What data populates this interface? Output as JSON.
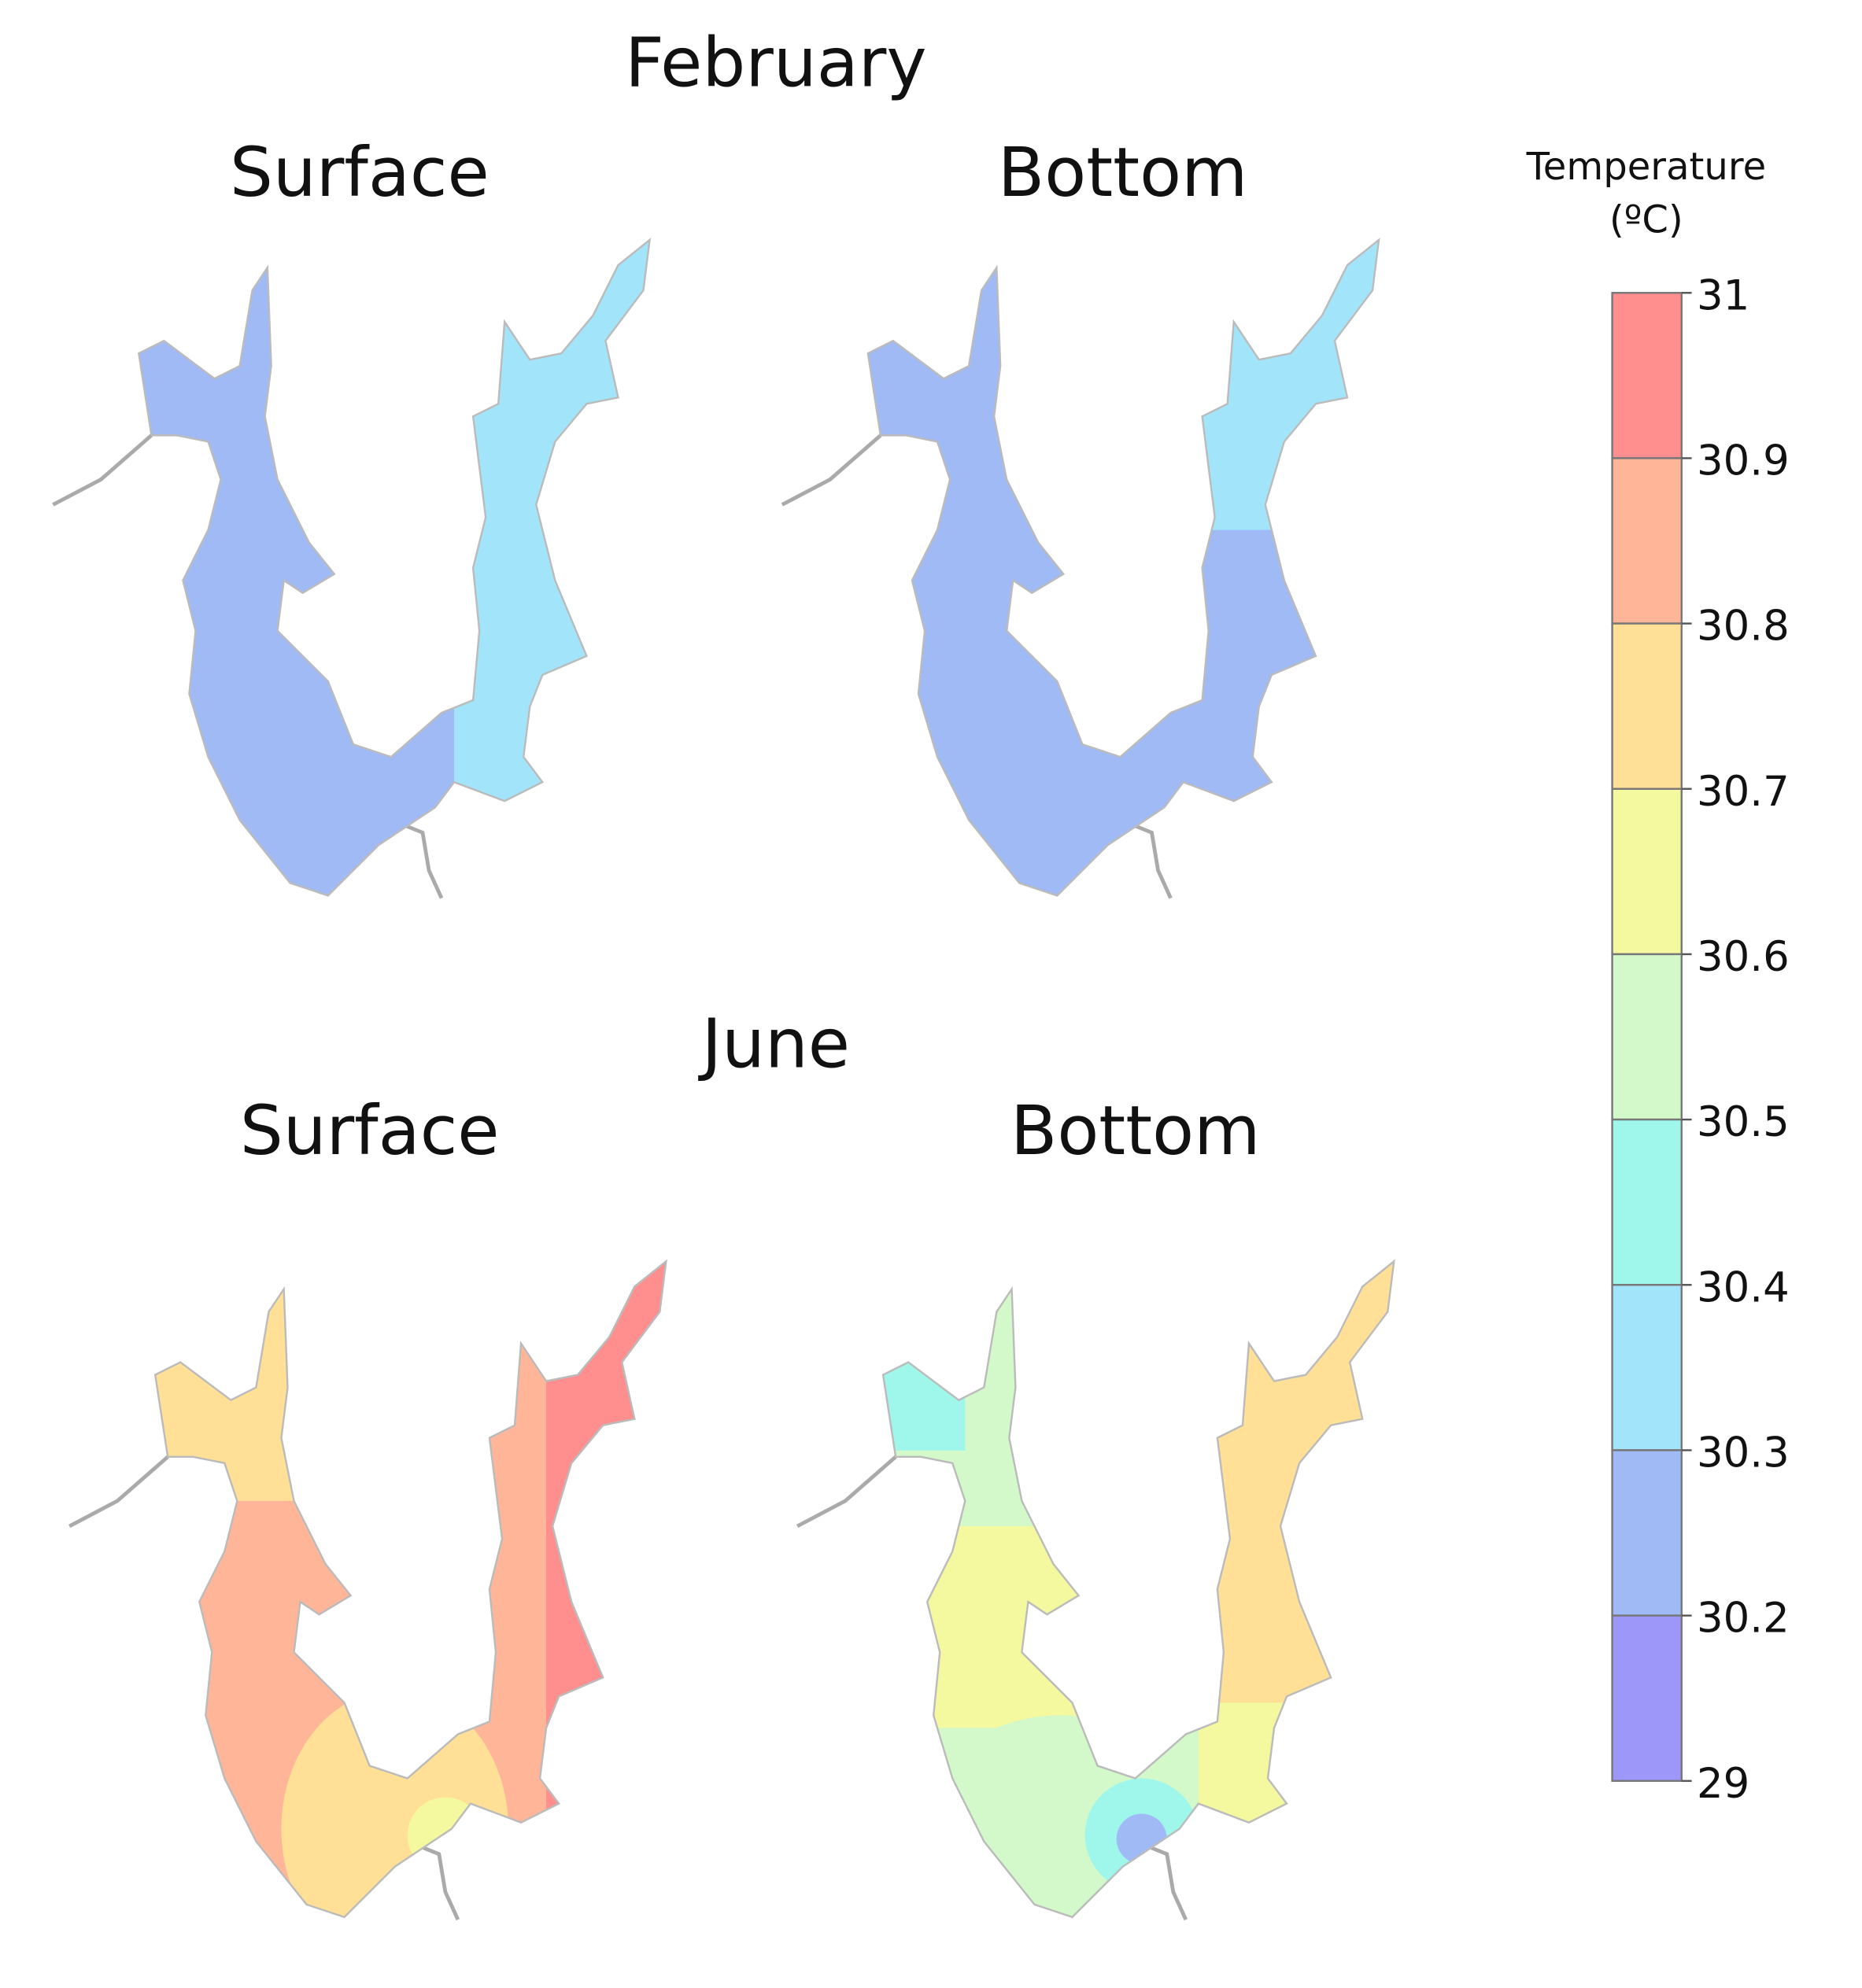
{
  "panels": [
    {
      "month": "February",
      "left": "Surface",
      "right": "Bottom"
    },
    {
      "month": "June",
      "left": "Surface",
      "right": "Bottom"
    }
  ],
  "legend": {
    "title": "Temperature",
    "unit": "(ºC)",
    "ticks": [
      "31",
      "30.9",
      "30.8",
      "30.7",
      "30.6",
      "30.5",
      "30.4",
      "30.3",
      "30.2",
      "29"
    ],
    "colors": [
      "#ff8f8f",
      "#ffb598",
      "#ffe096",
      "#f4f99f",
      "#d3f8c9",
      "#9ff7ec",
      "#a2e5fb",
      "#a0baf6",
      "#9c97f8"
    ]
  }
}
